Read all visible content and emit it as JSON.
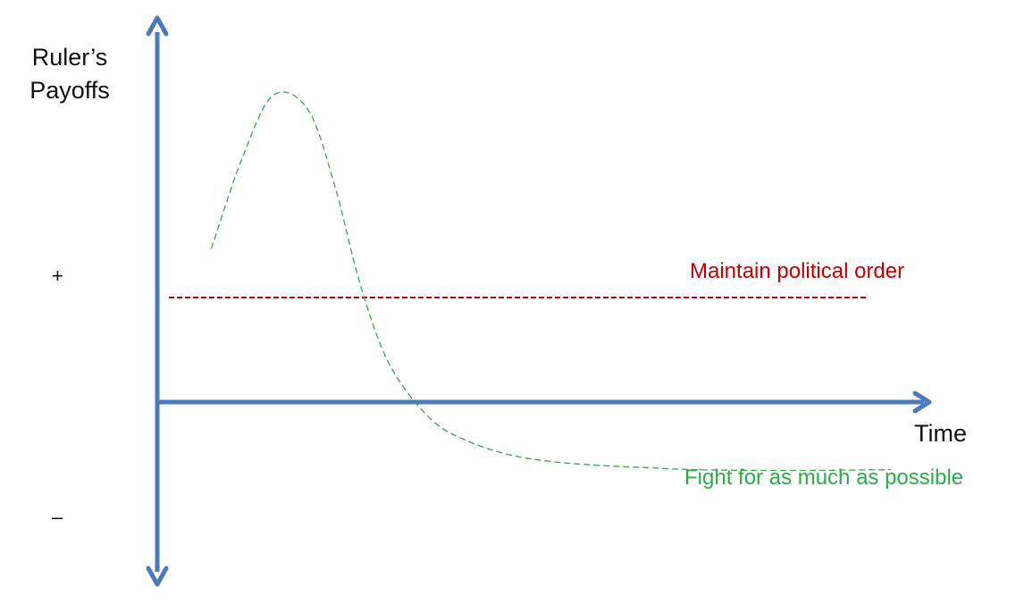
{
  "chart_data": {
    "type": "line",
    "title": "",
    "ylabel_line1": "Ruler’s",
    "ylabel_line2": "Payoffs",
    "xlabel": "Time",
    "y_ticks": {
      "positive": "+",
      "negative": "–"
    },
    "xlim": [
      0,
      10
    ],
    "ylim": [
      -2.6,
      4.8
    ],
    "grid": false,
    "series": [
      {
        "name": "Maintain political order",
        "style": "dashed",
        "color": "#c00000",
        "x": [
          0.15,
          9.2
        ],
        "y": [
          1.5,
          1.5
        ]
      },
      {
        "name": "Fight for as much as possible",
        "style": "dashed",
        "color": "#2eaa48",
        "x": [
          0.7,
          1.1,
          1.5,
          1.95,
          2.3,
          2.6,
          2.9,
          3.2,
          3.6,
          4.0,
          4.5,
          5.0,
          5.6,
          6.3,
          7.0,
          7.8,
          8.5,
          9.5
        ],
        "y": [
          2.2,
          3.5,
          4.4,
          4.2,
          3.1,
          1.8,
          0.8,
          0.2,
          -0.3,
          -0.55,
          -0.74,
          -0.84,
          -0.9,
          -0.94,
          -0.97,
          -0.98,
          -0.98,
          -0.97
        ]
      }
    ],
    "colors": {
      "axis": "#4a7ab8",
      "axis_text": "#111111"
    }
  }
}
